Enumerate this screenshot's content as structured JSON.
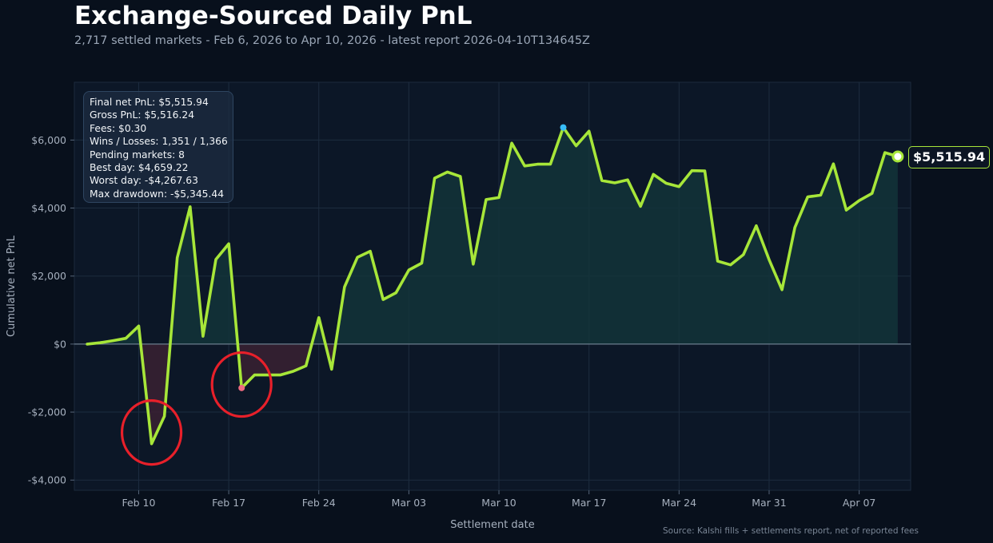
{
  "title": "Exchange-Sourced Daily PnL",
  "subtitle": "2,717 settled markets - Feb 6, 2026 to Apr 10, 2026 - latest report 2026-04-10T134645Z",
  "stats": [
    "Final net PnL: $5,515.94",
    "Gross PnL: $5,516.24",
    "Fees: $0.30",
    "Wins / Losses: 1,351 / 1,366",
    "Pending markets: 8",
    "Best day: $4,659.22",
    "Worst day: -$4,267.63",
    "Max drawdown: -$5,345.44"
  ],
  "final_value_label": "$5,515.94",
  "source_note": "Source: Kalshi fills + settlements report, net of reported fees",
  "colors": {
    "background": "#08101c",
    "plot_background": "#0c1727",
    "line": "#a7e639",
    "positive_fill": "#13343a",
    "negative_fill": "#3a2133",
    "peak_marker": "#38bdf8",
    "trough_marker": "#f06b80",
    "annotation_circle": "#e8202a",
    "zero_line": "#6b7c8c"
  },
  "chart_data": {
    "type": "area",
    "xlabel": "Settlement date",
    "ylabel": "Cumulative net PnL",
    "x_ticks": [
      "Feb 10",
      "Feb 17",
      "Feb 24",
      "Mar 03",
      "Mar 10",
      "Mar 17",
      "Mar 24",
      "Mar 31",
      "Apr 07"
    ],
    "x_tick_dates": [
      "2026-02-10",
      "2026-02-17",
      "2026-02-24",
      "2026-03-03",
      "2026-03-10",
      "2026-03-17",
      "2026-03-24",
      "2026-03-31",
      "2026-04-07"
    ],
    "y_ticks": [
      -4000,
      -2000,
      0,
      2000,
      4000,
      6000
    ],
    "y_tick_labels": [
      "-$4,000",
      "-$2,000",
      "$0",
      "$2,000",
      "$4,000",
      "$6,000"
    ],
    "xlim": [
      "2026-02-05",
      "2026-04-11"
    ],
    "ylim": [
      -4300,
      7700
    ],
    "grid": true,
    "legend": "none",
    "series": [
      {
        "x": [
          "2026-02-06",
          "2026-02-07",
          "2026-02-08",
          "2026-02-09",
          "2026-02-10",
          "2026-02-11",
          "2026-02-12",
          "2026-02-13",
          "2026-02-14",
          "2026-02-15",
          "2026-02-16",
          "2026-02-17",
          "2026-02-18",
          "2026-02-19",
          "2026-02-20",
          "2026-02-21",
          "2026-02-22",
          "2026-02-23",
          "2026-02-24",
          "2026-02-25",
          "2026-02-26",
          "2026-02-27",
          "2026-02-28",
          "2026-03-01",
          "2026-03-02",
          "2026-03-03",
          "2026-03-04",
          "2026-03-05",
          "2026-03-06",
          "2026-03-07",
          "2026-03-08",
          "2026-03-09",
          "2026-03-10",
          "2026-03-11",
          "2026-03-12",
          "2026-03-13",
          "2026-03-14",
          "2026-03-15",
          "2026-03-16",
          "2026-03-17",
          "2026-03-18",
          "2026-03-19",
          "2026-03-20",
          "2026-03-21",
          "2026-03-22",
          "2026-03-23",
          "2026-03-24",
          "2026-03-25",
          "2026-03-26",
          "2026-03-27",
          "2026-03-28",
          "2026-03-29",
          "2026-03-30",
          "2026-03-31",
          "2026-04-01",
          "2026-04-02",
          "2026-04-03",
          "2026-04-04",
          "2026-04-05",
          "2026-04-06",
          "2026-04-07",
          "2026-04-08",
          "2026-04-09",
          "2026-04-10"
        ],
        "y": [
          0,
          40,
          100,
          170,
          530,
          -2930,
          -2120,
          2540,
          4040,
          230,
          2490,
          2950,
          -1290,
          -910,
          -910,
          -910,
          -800,
          -640,
          780,
          -740,
          1680,
          2550,
          2730,
          1310,
          1510,
          2180,
          2380,
          4880,
          5060,
          4930,
          2350,
          4250,
          4310,
          5910,
          5240,
          5290,
          5290,
          6370,
          5830,
          6260,
          4810,
          4740,
          4830,
          4050,
          4990,
          4730,
          4630,
          5100,
          5090,
          2440,
          2330,
          2630,
          3480,
          2480,
          1600,
          3430,
          4330,
          4380,
          5300,
          3940,
          4220,
          4430,
          5630,
          5515.94
        ]
      }
    ],
    "markers": [
      {
        "kind": "peak",
        "x": "2026-03-15",
        "y": 6370
      },
      {
        "kind": "drawdown-trough",
        "x": "2026-02-18",
        "y": -1290
      },
      {
        "kind": "final",
        "x": "2026-04-10",
        "y": 5515.94
      }
    ],
    "annotations": [
      {
        "kind": "circle",
        "x": "2026-02-11",
        "y": -2600
      },
      {
        "kind": "circle",
        "x": "2026-02-18",
        "y": -1190
      }
    ]
  }
}
